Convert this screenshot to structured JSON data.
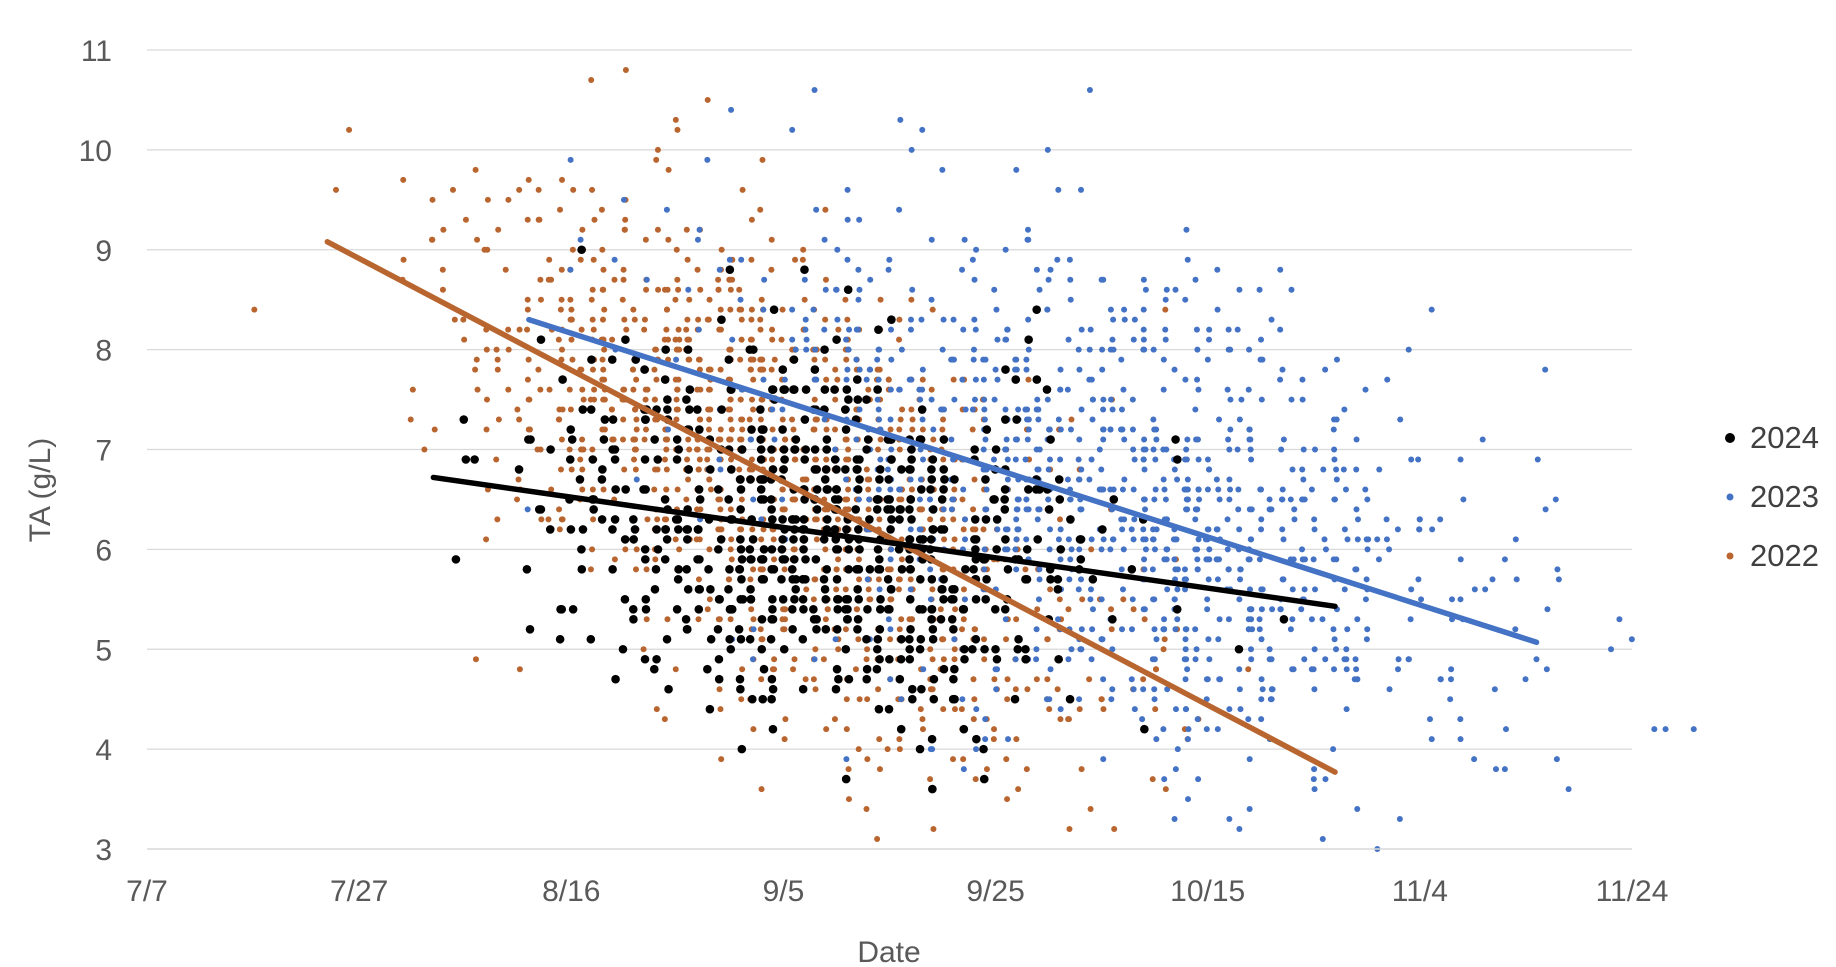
{
  "chart_data": {
    "type": "scatter",
    "title": "",
    "xlabel": "Date",
    "ylabel": "TA (g/L)",
    "x_axis": {
      "type": "date",
      "min": "2024-07-07",
      "max": "2024-11-24",
      "ticks": [
        "7/7",
        "7/27",
        "8/16",
        "9/5",
        "9/25",
        "10/15",
        "11/4",
        "11/24"
      ]
    },
    "y_axis": {
      "min": 3,
      "max": 11,
      "ticks": [
        "3",
        "4",
        "5",
        "6",
        "7",
        "8",
        "9",
        "10",
        "11"
      ]
    },
    "grid": {
      "horizontal": true,
      "vertical": false
    },
    "legend": {
      "position": "right",
      "entries": [
        "2024",
        "2023",
        "2022"
      ]
    },
    "series": [
      {
        "name": "2024",
        "color": "#000000",
        "point_distribution": {
          "x_center": "2024-09-09",
          "x_spread_days": 13,
          "y_mean": 5.8,
          "y_sd": 1.1,
          "count": 650
        },
        "trendline": {
          "start": [
            "2024-08-03",
            6.72
          ],
          "end": [
            "2024-10-27",
            5.43
          ]
        }
      },
      {
        "name": "2023",
        "color": "#4472C4",
        "point_distribution": {
          "x_center": "2024-10-05",
          "x_spread_days": 18,
          "y_mean": 6.0,
          "y_sd": 1.4,
          "count": 1100
        },
        "trendline": {
          "start": [
            "2024-08-12",
            8.3
          ],
          "end": [
            "2024-11-15",
            5.07
          ]
        }
      },
      {
        "name": "2022",
        "color": "#B9652F",
        "point_distribution": {
          "x_center": "2024-09-05",
          "x_spread_days": 14,
          "y_mean": 6.0,
          "y_sd": 1.3,
          "count": 1250
        },
        "trendline": {
          "start": [
            "2024-07-24",
            9.08
          ],
          "end": [
            "2024-10-27",
            3.77
          ]
        }
      }
    ]
  }
}
